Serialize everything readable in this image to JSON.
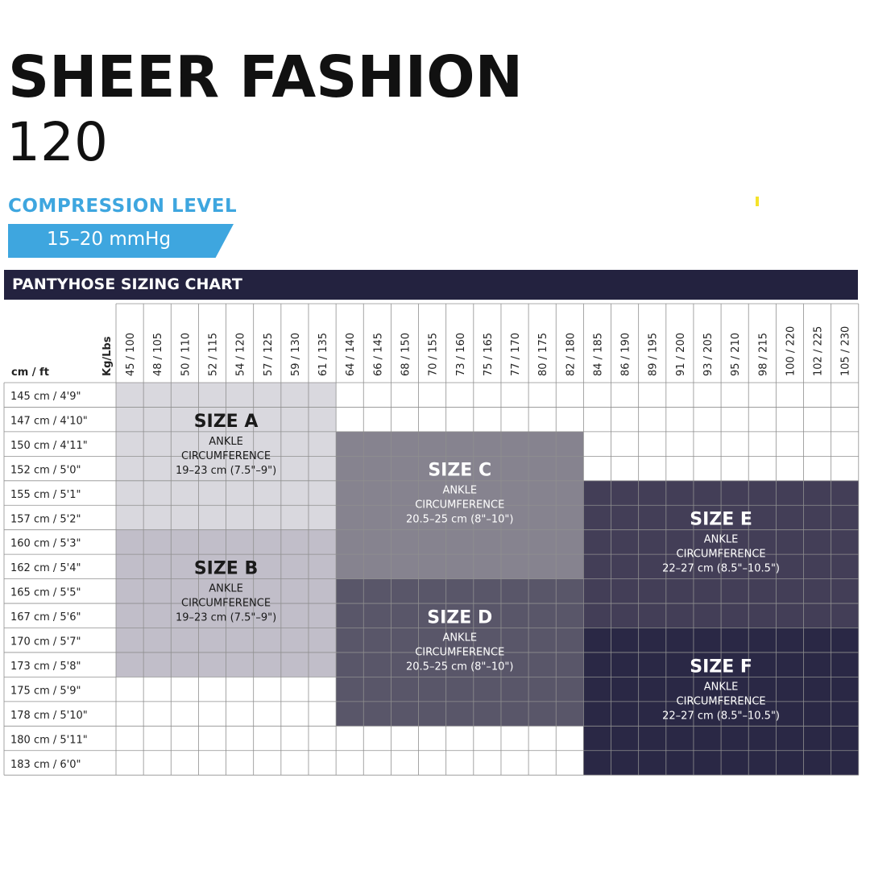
{
  "title": "SHEER FASHION",
  "subtitle": "120",
  "compression": {
    "label": "COMPRESSION LEVEL",
    "value": "15–20 mmHg"
  },
  "chart_title": "PANTYHOSE SIZING CHART",
  "chart_data": {
    "type": "table",
    "row_header_label": "cm / ft",
    "column_header_label": "Kg/Lbs",
    "columns": [
      "45 / 100",
      "48 / 105",
      "50 / 110",
      "52 / 115",
      "54 / 120",
      "57 / 125",
      "59 / 130",
      "61 / 135",
      "64 / 140",
      "66 / 145",
      "68 / 150",
      "70 / 155",
      "73 / 160",
      "75 / 165",
      "77 / 170",
      "80 / 175",
      "82 / 180",
      "84 / 185",
      "86 / 190",
      "89 / 195",
      "91 / 200",
      "93 / 205",
      "95 / 210",
      "98 / 215",
      "100 / 220",
      "102 / 225",
      "105 / 230"
    ],
    "rows": [
      "145 cm / 4'9\"",
      "147 cm / 4'10\"",
      "150 cm / 4'11\"",
      "152 cm / 5'0\"",
      "155 cm / 5'1\"",
      "157 cm / 5'2\"",
      "160 cm / 5'3\"",
      "162 cm / 5'4\"",
      "165 cm / 5'5\"",
      "167 cm / 5'6\"",
      "170 cm / 5'7\"",
      "173 cm / 5'8\"",
      "175 cm / 5'9\"",
      "178 cm / 5'10\"",
      "180 cm / 5'11\"",
      "183 cm / 6'0\""
    ],
    "sizes": [
      {
        "name": "SIZE A",
        "detail1": "ANKLE",
        "detail2": "CIRCUMFERENCE",
        "detail3": "19–23 cm (7.5\"–9\")",
        "col_start": 0,
        "col_end": 7,
        "row_start": 0,
        "row_end": 5,
        "color": "#d9d8de"
      },
      {
        "name": "SIZE B",
        "detail1": "ANKLE",
        "detail2": "CIRCUMFERENCE",
        "detail3": "19–23 cm (7.5\"–9\")",
        "col_start": 0,
        "col_end": 7,
        "row_start": 6,
        "row_end": 11,
        "color": "#c1bec9"
      },
      {
        "name": "SIZE C",
        "detail1": "ANKLE",
        "detail2": "CIRCUMFERENCE",
        "detail3": "20.5–25 cm (8\"–10\")",
        "col_start": 8,
        "col_end": 16,
        "row_start": 2,
        "row_end": 7,
        "color": "#86838f"
      },
      {
        "name": "SIZE D",
        "detail1": "ANKLE",
        "detail2": "CIRCUMFERENCE",
        "detail3": "20.5–25 cm (8\"–10\")",
        "col_start": 8,
        "col_end": 16,
        "row_start": 8,
        "row_end": 13,
        "color": "#595669"
      },
      {
        "name": "SIZE E",
        "detail1": "ANKLE",
        "detail2": "CIRCUMFERENCE",
        "detail3": "22–27 cm (8.5\"–10.5\")",
        "col_start": 17,
        "col_end": 26,
        "row_start": 4,
        "row_end": 9,
        "color": "#433e57"
      },
      {
        "name": "SIZE F",
        "detail1": "ANKLE",
        "detail2": "CIRCUMFERENCE",
        "detail3": "22–27 cm (8.5\"–10.5\")",
        "col_start": 17,
        "col_end": 26,
        "row_start": 10,
        "row_end": 15,
        "color": "#2a2845"
      }
    ]
  }
}
